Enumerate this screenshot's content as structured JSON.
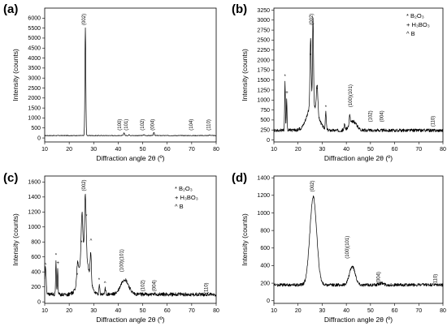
{
  "chart_data": [
    {
      "panel_label": "(a)",
      "type": "line",
      "xlabel": "Diffraction angle 2θ (º)",
      "ylabel": "Intensity (counts)",
      "xlim": [
        10,
        80
      ],
      "ylim": [
        -200,
        6500
      ],
      "xticks": [
        10,
        20,
        30,
        40,
        50,
        60,
        70,
        80
      ],
      "yticks": [
        0,
        500,
        1000,
        1500,
        2000,
        2500,
        3000,
        3500,
        4000,
        4500,
        5000,
        5500,
        6000
      ],
      "baseline": 120,
      "noise": 15,
      "peaks": [
        {
          "x": 26.6,
          "height": 5400,
          "width": 0.18
        },
        {
          "x": 42.4,
          "height": 140,
          "width": 0.2
        },
        {
          "x": 44.5,
          "height": 50,
          "width": 0.2
        },
        {
          "x": 50.5,
          "height": 40,
          "width": 0.25
        },
        {
          "x": 54.6,
          "height": 160,
          "width": 0.2
        },
        {
          "x": 77.4,
          "height": 30,
          "width": 0.25
        }
      ],
      "peak_labels": [
        {
          "text": "(002)",
          "x": 26.6,
          "y": 5650
        },
        {
          "text": "(100)",
          "x": 41.2,
          "y": 380
        },
        {
          "text": "(101)",
          "x": 43.8,
          "y": 380
        },
        {
          "text": "(102)",
          "x": 50.4,
          "y": 380
        },
        {
          "text": "(004)",
          "x": 54.6,
          "y": 380
        },
        {
          "text": "(104)",
          "x": 70.4,
          "y": 380
        },
        {
          "text": "(110)",
          "x": 77.5,
          "y": 380
        }
      ],
      "markers": [],
      "legend": []
    },
    {
      "panel_label": "(b)",
      "type": "line",
      "xlabel": "Diffraction angle 2θ (º)",
      "ylabel": "Intensity (counts)",
      "xlim": [
        10,
        80
      ],
      "ylim": [
        -50,
        3300
      ],
      "xticks": [
        10,
        20,
        30,
        40,
        50,
        60,
        70,
        80
      ],
      "yticks": [
        0,
        250,
        500,
        750,
        1000,
        1250,
        1500,
        1750,
        2000,
        2250,
        2500,
        2750,
        3000,
        3250
      ],
      "baseline": 240,
      "noise": 40,
      "peaks": [
        {
          "x": 26.0,
          "height": 650,
          "width": 2.2
        },
        {
          "x": 42.8,
          "height": 220,
          "width": 1.5
        },
        {
          "x": 14.6,
          "height": 1200,
          "width": 0.15
        },
        {
          "x": 15.3,
          "height": 800,
          "width": 0.15
        },
        {
          "x": 25.2,
          "height": 1700,
          "width": 0.25
        },
        {
          "x": 26.2,
          "height": 2200,
          "width": 0.2
        },
        {
          "x": 27.9,
          "height": 700,
          "width": 0.3
        },
        {
          "x": 31.5,
          "height": 420,
          "width": 0.2
        },
        {
          "x": 39.3,
          "height": 150,
          "width": 0.2
        },
        {
          "x": 41.4,
          "height": 250,
          "width": 0.2
        }
      ],
      "peak_labels": [
        {
          "text": "(002)",
          "x": 26.2,
          "y": 2880
        },
        {
          "text": "(100)(101)",
          "x": 42.3,
          "y": 820
        },
        {
          "text": "(102)",
          "x": 50.6,
          "y": 450
        },
        {
          "text": "(004)",
          "x": 55.3,
          "y": 450
        },
        {
          "text": "(110)",
          "x": 76.5,
          "y": 330
        }
      ],
      "markers": [
        {
          "symbol": "*",
          "x": 14.6,
          "y": 1550
        },
        {
          "symbol": "+",
          "x": 15.4,
          "y": 1150
        },
        {
          "symbol": "*",
          "x": 25.1,
          "y": 2080
        },
        {
          "symbol": "*",
          "x": 27.8,
          "y": 1230
        },
        {
          "symbol": "*",
          "x": 31.5,
          "y": 780
        }
      ],
      "legend": [
        "* B₂O₃",
        "+ H₃BO₃",
        "^ B"
      ]
    },
    {
      "panel_label": "(c)",
      "type": "line",
      "xlabel": "Diffraction angle 2θ (º)",
      "ylabel": "Intensity (counts)",
      "xlim": [
        10,
        80
      ],
      "ylim": [
        -20,
        1680
      ],
      "xticks": [
        10,
        20,
        30,
        40,
        50,
        60,
        70,
        80
      ],
      "yticks": [
        0,
        200,
        400,
        600,
        800,
        1000,
        1200,
        1400,
        1600
      ],
      "baseline": 100,
      "noise": 25,
      "peaks": [
        {
          "x": 10.3,
          "height": 350,
          "width": 0.3
        },
        {
          "x": 26.0,
          "height": 600,
          "width": 1.8
        },
        {
          "x": 42.6,
          "height": 200,
          "width": 1.6
        },
        {
          "x": 14.6,
          "height": 450,
          "width": 0.15
        },
        {
          "x": 15.3,
          "height": 330,
          "width": 0.15
        },
        {
          "x": 23.4,
          "height": 220,
          "width": 0.3
        },
        {
          "x": 25.2,
          "height": 550,
          "width": 0.3
        },
        {
          "x": 26.6,
          "height": 760,
          "width": 0.3
        },
        {
          "x": 28.8,
          "height": 380,
          "width": 0.25
        },
        {
          "x": 32.3,
          "height": 110,
          "width": 0.2
        },
        {
          "x": 34.7,
          "height": 80,
          "width": 0.2
        }
      ],
      "peak_labels": [
        {
          "text": "(002)",
          "x": 26.6,
          "y": 1480
        },
        {
          "text": "(100)(101)",
          "x": 42.0,
          "y": 400
        },
        {
          "text": "(102)",
          "x": 50.6,
          "y": 140
        },
        {
          "text": "(004)",
          "x": 55.3,
          "y": 140
        },
        {
          "text": "(110)",
          "x": 76.5,
          "y": 110
        }
      ],
      "markers": [
        {
          "symbol": "^",
          "x": 10.3,
          "y": 470
        },
        {
          "symbol": "*",
          "x": 14.6,
          "y": 600
        },
        {
          "symbol": "+",
          "x": 15.4,
          "y": 500
        },
        {
          "symbol": "*",
          "x": 23.3,
          "y": 340
        },
        {
          "symbol": "*",
          "x": 25.0,
          "y": 770
        },
        {
          "symbol": "*",
          "x": 27.0,
          "y": 1120
        },
        {
          "symbol": "^",
          "x": 28.9,
          "y": 800
        },
        {
          "symbol": "*",
          "x": 32.2,
          "y": 270
        },
        {
          "symbol": "^",
          "x": 34.6,
          "y": 230
        }
      ],
      "legend": [
        "* B₂O₃",
        "+ H₃BO₃",
        "^ B"
      ]
    },
    {
      "panel_label": "(d)",
      "type": "line",
      "xlabel": "Diffraction angle 2θ (º)",
      "ylabel": "Intensity (counts)",
      "xlim": [
        10,
        80
      ],
      "ylim": [
        -30,
        1420
      ],
      "xticks": [
        10,
        20,
        30,
        40,
        50,
        60,
        70,
        80
      ],
      "yticks": [
        0,
        200,
        400,
        600,
        800,
        1000,
        1200,
        1400
      ],
      "baseline": 180,
      "noise": 18,
      "peaks": [
        {
          "x": 26.3,
          "height": 1000,
          "width": 1.4
        },
        {
          "x": 42.5,
          "height": 210,
          "width": 1.2
        },
        {
          "x": 54.5,
          "height": 20,
          "width": 1.0
        }
      ],
      "peak_labels": [
        {
          "text": "(002)",
          "x": 26.5,
          "y": 1240
        },
        {
          "text": "(100)(101)",
          "x": 41.0,
          "y": 480
        },
        {
          "text": "(004)",
          "x": 54.0,
          "y": 200
        },
        {
          "text": "(110)",
          "x": 77.5,
          "y": 180
        }
      ],
      "markers": [],
      "legend": []
    }
  ]
}
